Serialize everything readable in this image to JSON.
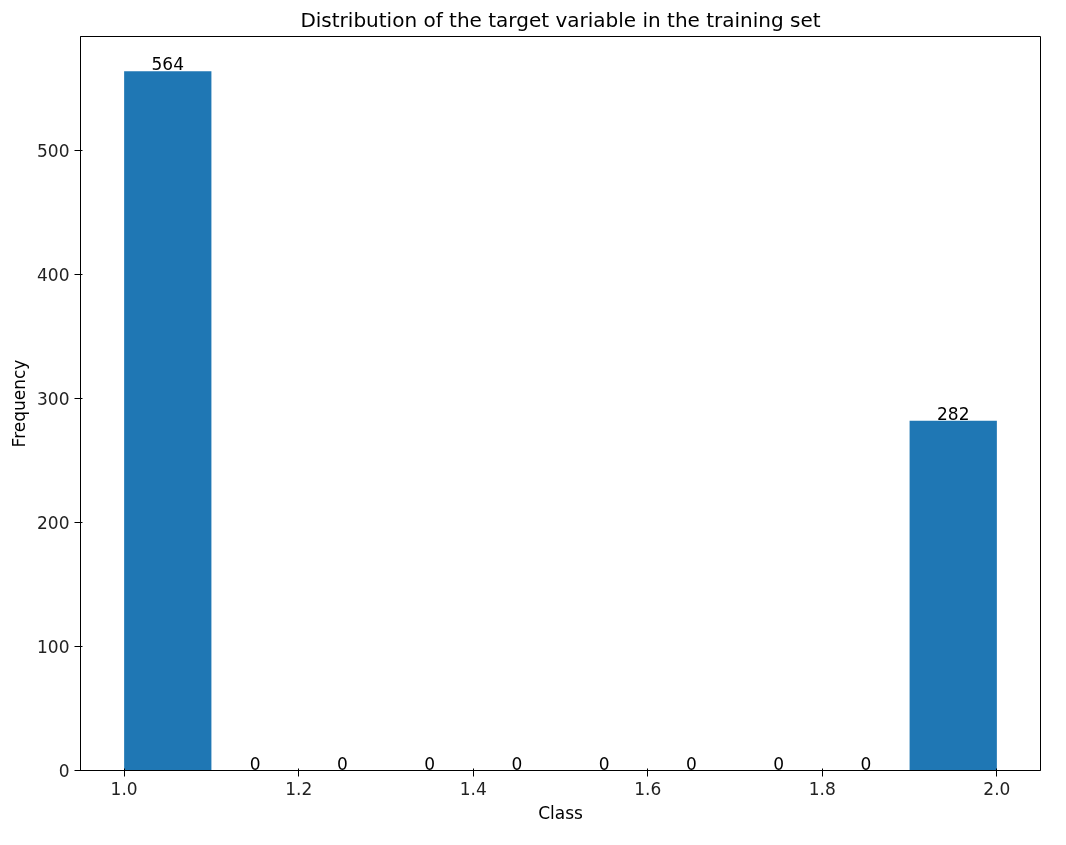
{
  "chart_data": {
    "type": "histogram",
    "title": "Distribution of the target variable in the training set",
    "xlabel": "Class",
    "ylabel": "Frequency",
    "bins": [
      1.0,
      1.1,
      1.2,
      1.3,
      1.4,
      1.5,
      1.6,
      1.7,
      1.8,
      1.9,
      2.0
    ],
    "values": [
      564,
      0,
      0,
      0,
      0,
      0,
      0,
      0,
      0,
      282
    ],
    "color": "#1f77b4",
    "xlim": [
      0.95,
      2.05
    ],
    "ylim": [
      0,
      592
    ],
    "xticks": [
      {
        "value": 1.0,
        "label": "1.0"
      },
      {
        "value": 1.2,
        "label": "1.2"
      },
      {
        "value": 1.4,
        "label": "1.4"
      },
      {
        "value": 1.6,
        "label": "1.6"
      },
      {
        "value": 1.8,
        "label": "1.8"
      },
      {
        "value": 2.0,
        "label": "2.0"
      }
    ],
    "yticks": [
      0,
      100,
      200,
      300,
      400,
      500
    ],
    "data_labels": true,
    "grid": false
  }
}
